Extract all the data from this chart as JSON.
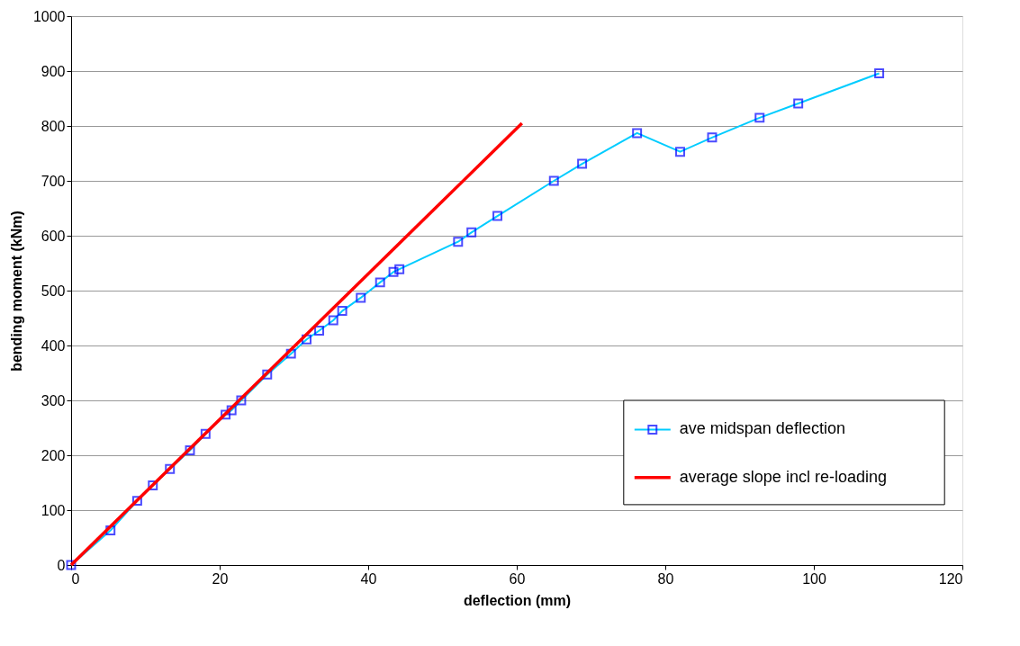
{
  "chart_data": {
    "type": "line",
    "xlabel": "deflection (mm)",
    "ylabel": "bending moment (kNm)",
    "xlim": [
      0,
      120
    ],
    "xticks": [
      0,
      20,
      40,
      60,
      80,
      100,
      120
    ],
    "ylim": [
      0,
      1000
    ],
    "yticks": [
      0,
      100,
      200,
      300,
      400,
      500,
      600,
      700,
      800,
      900,
      1000
    ],
    "grid": "y",
    "legend": "bottom right",
    "series": [
      {
        "name": "ave midspan deflection",
        "color": "#00ccff",
        "marker": "square",
        "x": [
          0,
          5.3,
          8.9,
          11.0,
          13.3,
          16.0,
          18.1,
          20.8,
          21.6,
          22.9,
          26.4,
          29.6,
          31.7,
          33.4,
          35.3,
          36.5,
          39.0,
          41.6,
          43.4,
          44.2,
          52.1,
          53.9,
          57.4,
          65.0,
          68.8,
          76.2,
          82.0,
          86.3,
          92.7,
          97.9,
          108.8
        ],
        "values": [
          0,
          63,
          117,
          145,
          175,
          209,
          239,
          274,
          282,
          300,
          347,
          385,
          411,
          427,
          446,
          463,
          487,
          515,
          534,
          539,
          589,
          606,
          636,
          700,
          731,
          787,
          753,
          779,
          815,
          841,
          896
        ]
      },
      {
        "name": "average slope incl re-loading",
        "color": "#ff0000",
        "marker": "none",
        "x": [
          0,
          60.7
        ],
        "values": [
          0,
          805
        ]
      }
    ]
  }
}
